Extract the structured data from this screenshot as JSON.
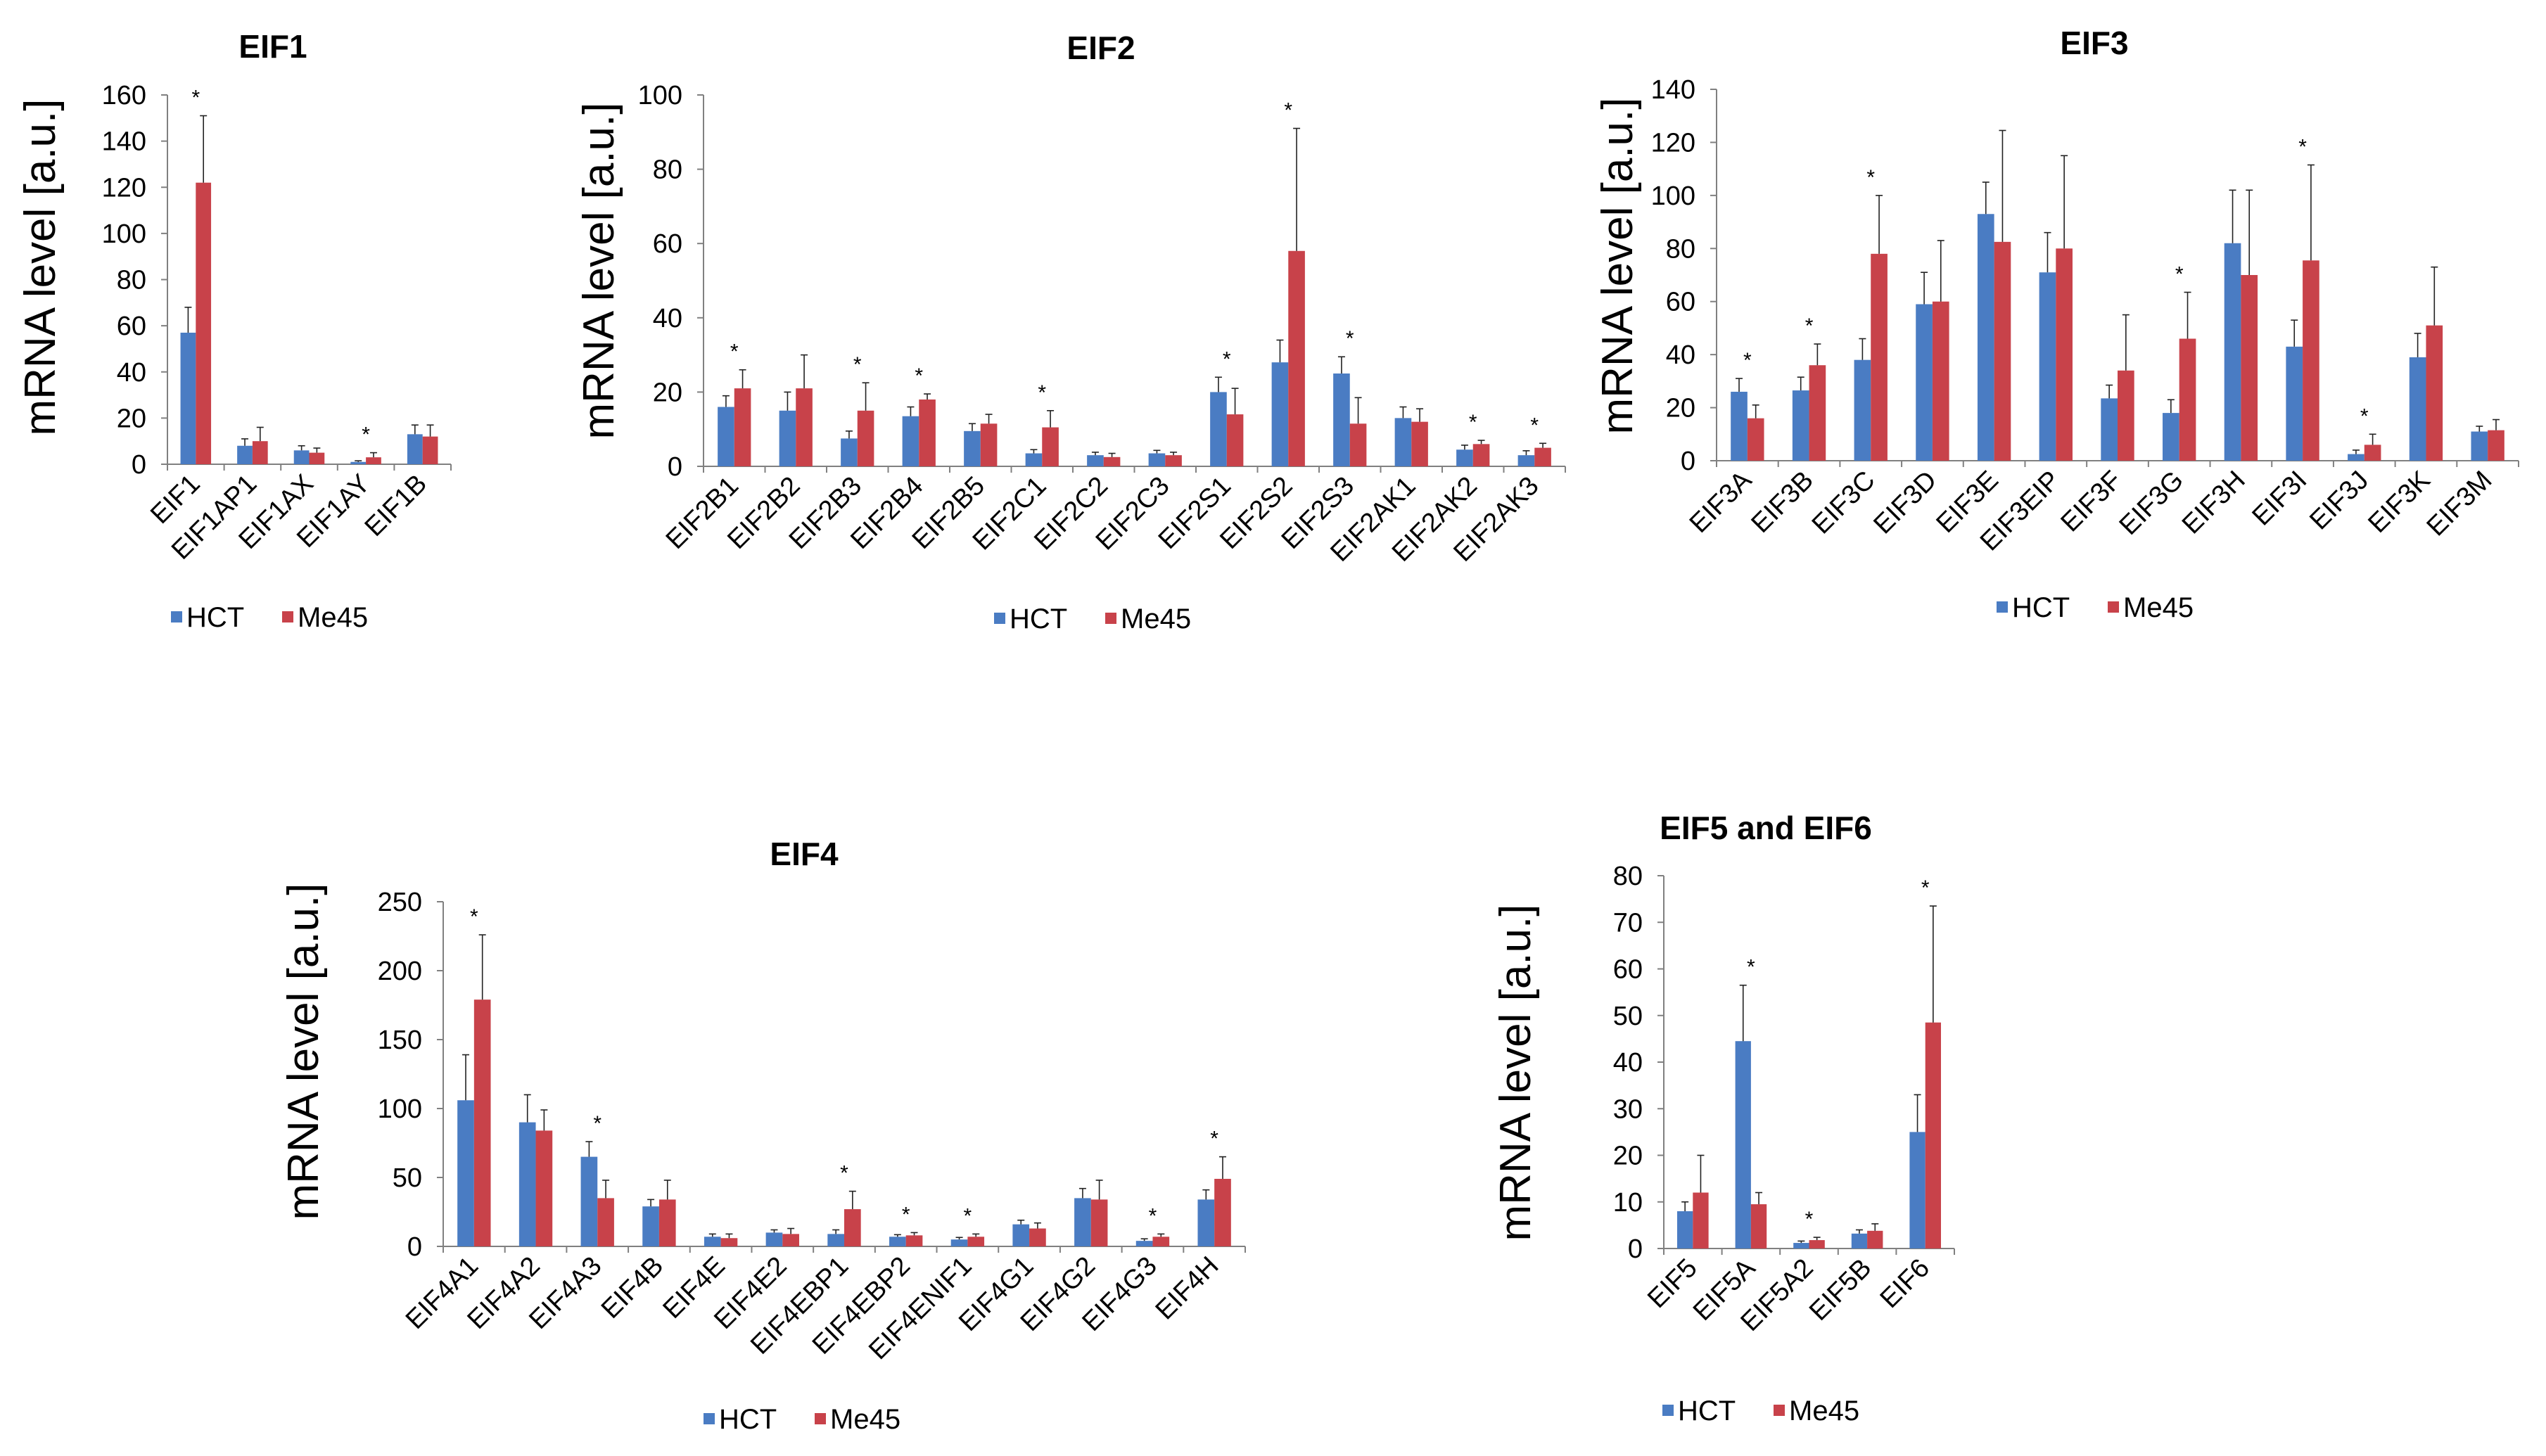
{
  "colors": {
    "hct": "#4a7cc3",
    "me45": "#c8424a",
    "axis": "#808080",
    "error": "#222222"
  },
  "legend": {
    "hct": "HCT",
    "me45": "Me45"
  },
  "chart_data": [
    {
      "id": "eif1",
      "type": "bar",
      "title": "EIF1",
      "ylabel": "mRNA level [a.u.]",
      "ylim": [
        0,
        160
      ],
      "yticks": [
        0,
        20,
        40,
        60,
        80,
        100,
        120,
        140,
        160
      ],
      "categories": [
        "EIF1",
        "EIF1AP1",
        "EIF1AX",
        "EIF1AY",
        "EIF1B"
      ],
      "series": [
        {
          "name": "HCT",
          "values": [
            57,
            8,
            6,
            1,
            13
          ],
          "errors": [
            11,
            3,
            2,
            0.5,
            4
          ]
        },
        {
          "name": "Me45",
          "values": [
            122,
            10,
            5,
            3,
            12
          ],
          "errors": [
            29,
            6,
            2,
            2,
            5
          ]
        }
      ],
      "significant": [
        0,
        3
      ]
    },
    {
      "id": "eif2",
      "type": "bar",
      "title": "EIF2",
      "ylabel": "mRNA level [a.u.]",
      "ylim": [
        0,
        100
      ],
      "yticks": [
        0,
        20,
        40,
        60,
        80,
        100
      ],
      "categories": [
        "EIF2B1",
        "EIF2B2",
        "EIF2B3",
        "EIF2B4",
        "EIF2B5",
        "EIF2C1",
        "EIF2C2",
        "EIF2C3",
        "EIF2S1",
        "EIF2S2",
        "EIF2S3",
        "EIF2AK1",
        "EIF2AK2",
        "EIF2AK3"
      ],
      "series": [
        {
          "name": "HCT",
          "values": [
            16,
            15,
            7.5,
            13.5,
            9.5,
            3.5,
            3,
            3.5,
            20,
            28,
            25,
            13,
            4.5,
            3
          ],
          "errors": [
            3,
            5,
            2,
            2.5,
            2,
            1,
            0.8,
            0.8,
            4,
            6,
            4.5,
            3,
            1.2,
            1.2
          ]
        },
        {
          "name": "Me45",
          "values": [
            21,
            21,
            15,
            18,
            11.5,
            10.5,
            2.5,
            3,
            14,
            58,
            11.5,
            12,
            6,
            5
          ],
          "errors": [
            5,
            9,
            7.5,
            1.5,
            2.5,
            4.5,
            1,
            0.8,
            7,
            33,
            7,
            3.5,
            1,
            1.2
          ]
        }
      ],
      "significant": [
        0,
        2,
        3,
        5,
        8,
        9,
        10,
        12,
        13
      ]
    },
    {
      "id": "eif3",
      "type": "bar",
      "title": "EIF3",
      "ylabel": "mRNA level [a.u.]",
      "ylim": [
        0,
        140
      ],
      "yticks": [
        0,
        20,
        40,
        60,
        80,
        100,
        120,
        140
      ],
      "categories": [
        "EIF3A",
        "EIF3B",
        "EIF3C",
        "EIF3D",
        "EIF3E",
        "EIF3EIP",
        "EIF3F",
        "EIF3G",
        "EIF3H",
        "EIF3I",
        "EIF3J",
        "EIF3K",
        "EIF3M"
      ],
      "series": [
        {
          "name": "HCT",
          "values": [
            26,
            26.5,
            38,
            59,
            93,
            71,
            23.5,
            18,
            82,
            43,
            2.5,
            39,
            11
          ],
          "errors": [
            5,
            5,
            8,
            12,
            12,
            15,
            5,
            5,
            20,
            10,
            1.5,
            9,
            2
          ]
        },
        {
          "name": "Me45",
          "values": [
            16,
            36,
            78,
            60,
            82.5,
            80,
            34,
            46,
            70,
            75.5,
            6,
            51,
            11.5
          ],
          "errors": [
            5,
            8,
            22,
            23,
            42,
            35,
            21,
            17.5,
            32,
            36,
            4,
            22,
            4
          ]
        }
      ],
      "significant": [
        0,
        1,
        2,
        7,
        9,
        10
      ]
    },
    {
      "id": "eif4",
      "type": "bar",
      "title": "EIF4",
      "ylabel": "mRNA level [a.u.]",
      "ylim": [
        0,
        250
      ],
      "yticks": [
        0,
        50,
        100,
        150,
        200,
        250
      ],
      "categories": [
        "EIF4A1",
        "EIF4A2",
        "EIF4A3",
        "EIF4B",
        "EIF4E",
        "EIF4E2",
        "EIF4EBP1",
        "EIF4EBP2",
        "EIF4ENIF1",
        "EIF4G1",
        "EIF4G2",
        "EIF4G3",
        "EIF4H"
      ],
      "series": [
        {
          "name": "HCT",
          "values": [
            106,
            90,
            65,
            29,
            7,
            10,
            9,
            7,
            5,
            16,
            35,
            4,
            34
          ],
          "errors": [
            33,
            20,
            11,
            5,
            2,
            2,
            3,
            1.5,
            1.5,
            3,
            7,
            1.5,
            7
          ]
        },
        {
          "name": "Me45",
          "values": [
            179,
            84,
            35,
            34,
            6,
            9,
            27,
            8,
            7,
            13,
            34,
            7,
            49
          ],
          "errors": [
            47,
            15,
            13,
            14,
            3,
            4,
            13,
            2,
            2,
            4,
            14,
            2,
            16
          ]
        }
      ],
      "significant": [
        0,
        2,
        6,
        7,
        8,
        11,
        12
      ]
    },
    {
      "id": "eif56",
      "type": "bar",
      "title": "EIF5 and EIF6",
      "ylabel": "mRNA level [a.u.]",
      "ylim": [
        0,
        80
      ],
      "yticks": [
        0,
        10,
        20,
        30,
        40,
        50,
        60,
        70,
        80
      ],
      "categories": [
        "EIF5",
        "EIF5A",
        "EIF5A2",
        "EIF5B",
        "EIF6"
      ],
      "series": [
        {
          "name": "HCT",
          "values": [
            8,
            44.5,
            1.2,
            3.2,
            25
          ],
          "errors": [
            2,
            12,
            0.4,
            0.8,
            8
          ]
        },
        {
          "name": "Me45",
          "values": [
            12,
            9.5,
            1.8,
            3.8,
            48.5
          ],
          "errors": [
            8,
            2.5,
            0.6,
            1.5,
            25
          ]
        }
      ],
      "significant": [
        1,
        2,
        4
      ]
    }
  ]
}
